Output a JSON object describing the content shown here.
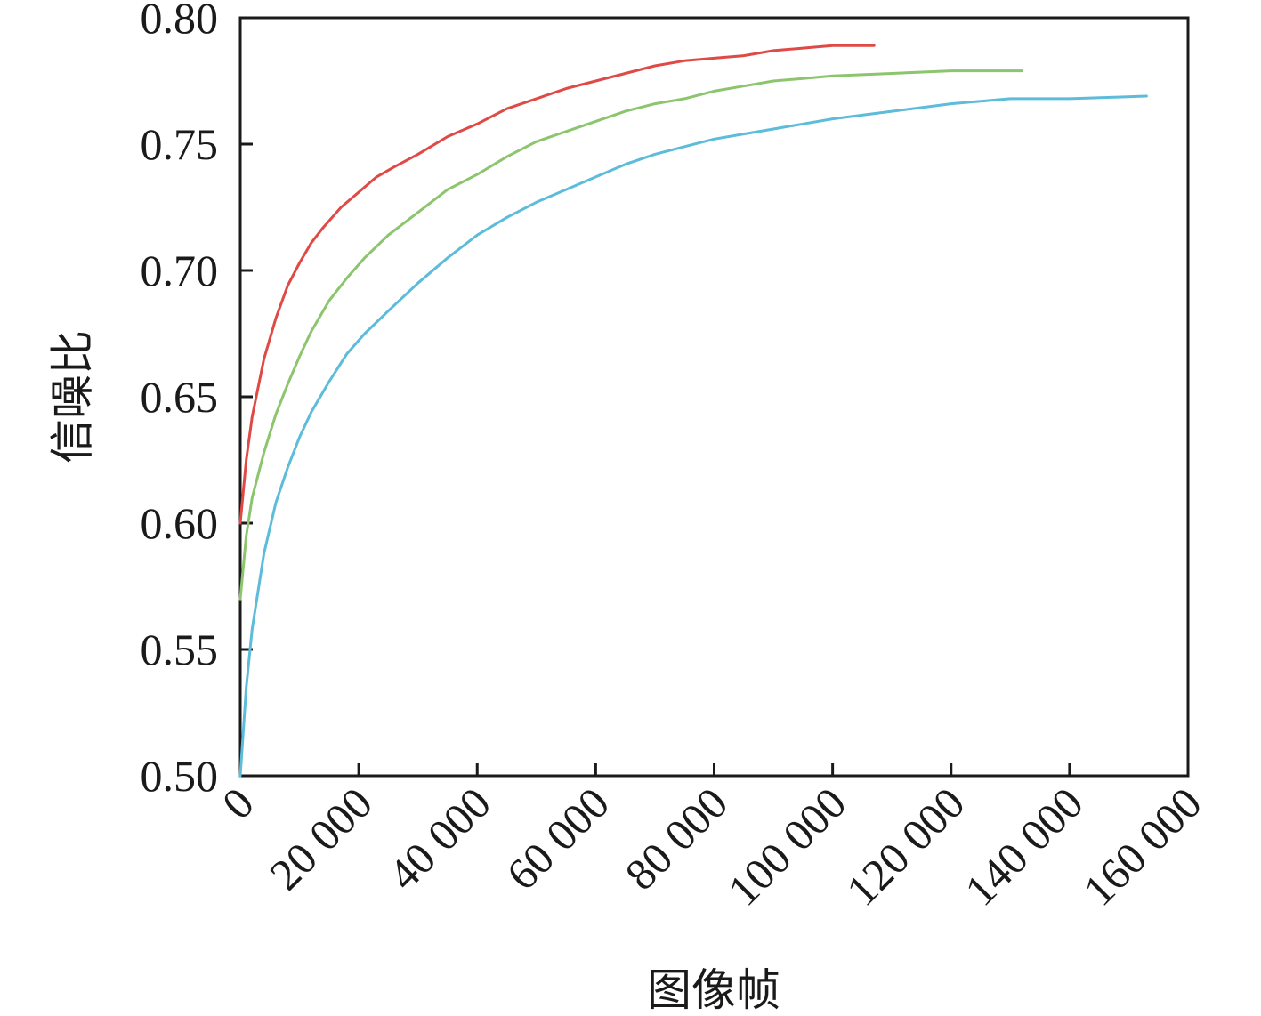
{
  "chart_data": {
    "type": "line",
    "title": "",
    "xlabel": "图像帧",
    "ylabel": "信噪比",
    "xlim": [
      0,
      160000
    ],
    "ylim": [
      0.5,
      0.8
    ],
    "grid": false,
    "x_ticks": [
      0,
      20000,
      40000,
      60000,
      80000,
      100000,
      120000,
      140000,
      160000
    ],
    "x_tick_labels": [
      "0",
      "20 000",
      "40 000",
      "60 000",
      "80 000",
      "100 000",
      "120 000",
      "140 000",
      "160 000"
    ],
    "y_ticks": [
      0.5,
      0.55,
      0.6,
      0.65,
      0.7,
      0.75,
      0.8
    ],
    "y_tick_labels": [
      "0.50",
      "0.55",
      "0.60",
      "0.65",
      "0.70",
      "0.75",
      "0.80"
    ],
    "series": [
      {
        "color": "#e04a46",
        "x": [
          0,
          1000,
          2000,
          4000,
          6000,
          8000,
          10000,
          12000,
          14000,
          17000,
          20000,
          23000,
          26000,
          30000,
          35000,
          40000,
          45000,
          50000,
          55000,
          60000,
          65000,
          70000,
          75000,
          80000,
          85000,
          90000,
          95000,
          100000,
          107000
        ],
        "y": [
          0.6,
          0.625,
          0.642,
          0.665,
          0.681,
          0.694,
          0.703,
          0.711,
          0.717,
          0.725,
          0.731,
          0.737,
          0.741,
          0.746,
          0.753,
          0.758,
          0.764,
          0.768,
          0.772,
          0.775,
          0.778,
          0.781,
          0.783,
          0.784,
          0.785,
          0.787,
          0.788,
          0.789,
          0.789
        ]
      },
      {
        "color": "#8cc56e",
        "x": [
          0,
          1000,
          2000,
          4000,
          6000,
          8000,
          10000,
          12000,
          15000,
          18000,
          21000,
          25000,
          30000,
          35000,
          40000,
          45000,
          50000,
          55000,
          60000,
          65000,
          70000,
          75000,
          80000,
          85000,
          90000,
          95000,
          100000,
          110000,
          120000,
          132000
        ],
        "y": [
          0.57,
          0.595,
          0.61,
          0.628,
          0.643,
          0.655,
          0.666,
          0.676,
          0.688,
          0.697,
          0.705,
          0.714,
          0.723,
          0.732,
          0.738,
          0.745,
          0.751,
          0.755,
          0.759,
          0.763,
          0.766,
          0.768,
          0.771,
          0.773,
          0.775,
          0.776,
          0.777,
          0.778,
          0.779,
          0.779
        ]
      },
      {
        "color": "#5cbcd9",
        "x": [
          0,
          1000,
          2000,
          4000,
          6000,
          8000,
          10000,
          12000,
          15000,
          18000,
          21000,
          25000,
          30000,
          35000,
          40000,
          45000,
          50000,
          55000,
          60000,
          65000,
          70000,
          75000,
          80000,
          85000,
          90000,
          95000,
          100000,
          110000,
          120000,
          130000,
          140000,
          153000
        ],
        "y": [
          0.5,
          0.535,
          0.558,
          0.588,
          0.608,
          0.622,
          0.634,
          0.644,
          0.656,
          0.667,
          0.675,
          0.684,
          0.695,
          0.705,
          0.714,
          0.721,
          0.727,
          0.732,
          0.737,
          0.742,
          0.746,
          0.749,
          0.752,
          0.754,
          0.756,
          0.758,
          0.76,
          0.763,
          0.766,
          0.768,
          0.768,
          0.769
        ]
      }
    ]
  }
}
